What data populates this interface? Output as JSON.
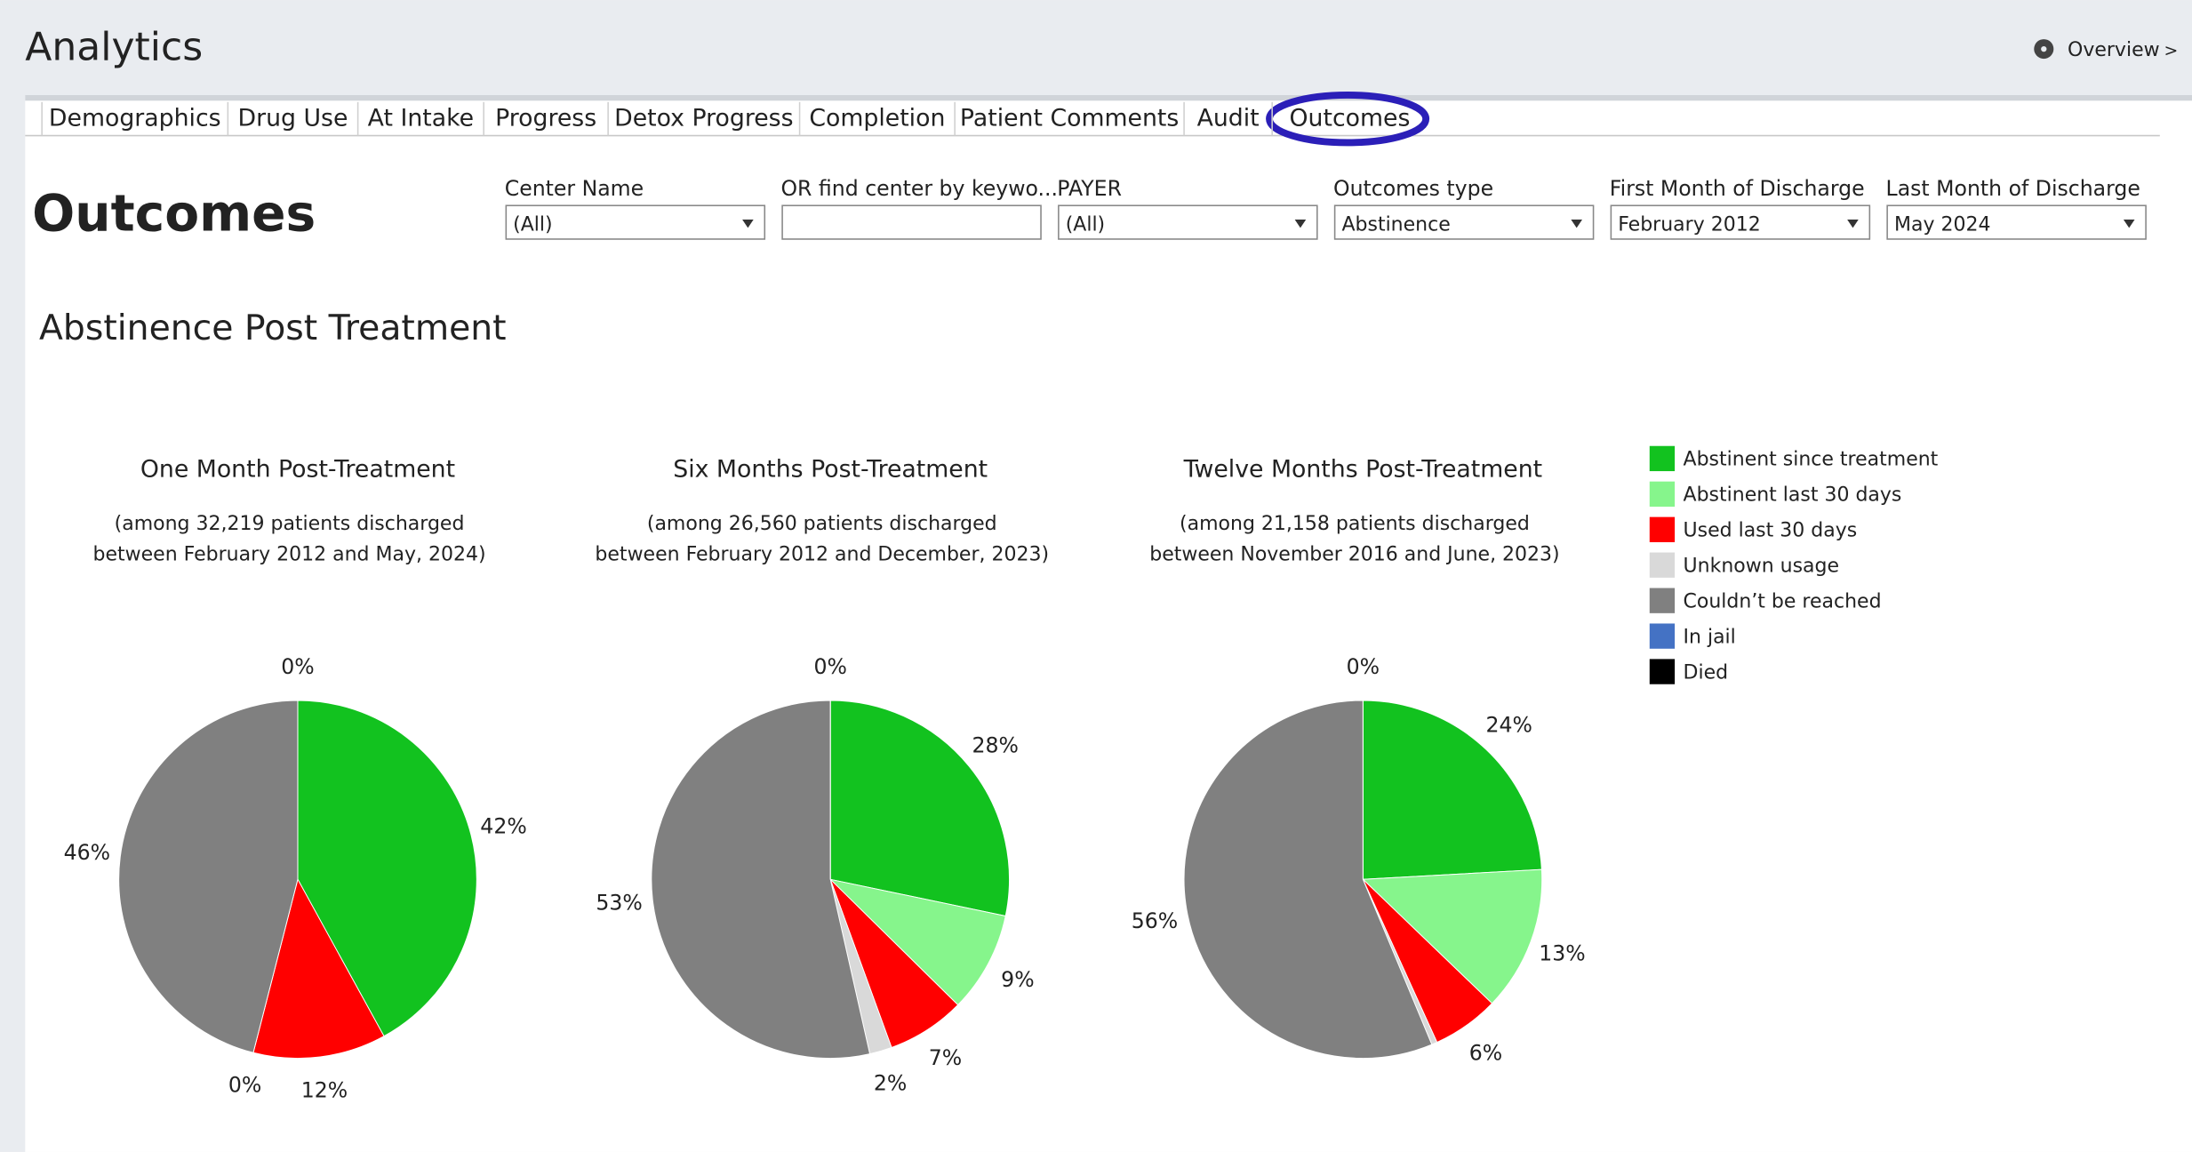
{
  "header": {
    "title": "Analytics",
    "breadcrumb": [
      "Overview",
      ">"
    ]
  },
  "tabs": [
    "Demographics",
    "Drug Use",
    "At Intake",
    "Progress",
    "Detox Progress",
    "Completion",
    "Patient Comments",
    "Audit",
    "Outcomes"
  ],
  "page_title": "Outcomes",
  "filters": [
    {
      "label": "Center Name",
      "value": "(All)"
    },
    {
      "label": "OR find center by keywo..."
    },
    {
      "label": "PAYER",
      "value": "(All)"
    },
    {
      "label": "Outcomes type",
      "value": "Abstinence"
    },
    {
      "label": "First Month of Discharge",
      "value": "February 2012"
    },
    {
      "label": "Last Month of Discharge",
      "value": "May 2024"
    }
  ],
  "section_title": "Abstinence Post Treatment",
  "legend": {
    "labels": [
      "Abstinent since treatment",
      "Abstinent last 30 days",
      "Used last 30 days",
      "Unknown usage",
      "Couldn’t be reached",
      "In jail",
      "Died"
    ],
    "colors": [
      "#12c21f",
      "#86f58c",
      "#ff0000",
      "#d9d9d9",
      "#808080",
      "#4472c4",
      "#000000"
    ]
  },
  "chart_data": [
    {
      "type": "pie",
      "title": "One Month Post-Treatment",
      "subtitle": [
        "(among 32,219 patients discharged",
        "between February 2012 and May, 2024)"
      ],
      "values": [
        42,
        null,
        12,
        0,
        46,
        null,
        0
      ],
      "value_labels": [
        "42%",
        null,
        "12%",
        "0%",
        "46%",
        null,
        "0%"
      ]
    },
    {
      "type": "pie",
      "title": "Six Months Post-Treatment",
      "subtitle": [
        "(among 26,560 patients discharged",
        "between February 2012 and December, 2023)"
      ],
      "values": [
        28,
        9,
        7,
        2,
        53,
        null,
        0
      ],
      "value_labels": [
        "28%",
        "9%",
        "7%",
        "2%",
        "53%",
        null,
        "0%"
      ]
    },
    {
      "type": "pie",
      "title": "Twelve Months Post-Treatment",
      "subtitle": [
        "(among 21,158 patients discharged",
        "between November 2016 and June, 2023)"
      ],
      "values": [
        24,
        13,
        6,
        0.5,
        56,
        null,
        0
      ],
      "value_labels": [
        "24%",
        "13%",
        "6%",
        null,
        "56%",
        null,
        "0%"
      ]
    }
  ]
}
